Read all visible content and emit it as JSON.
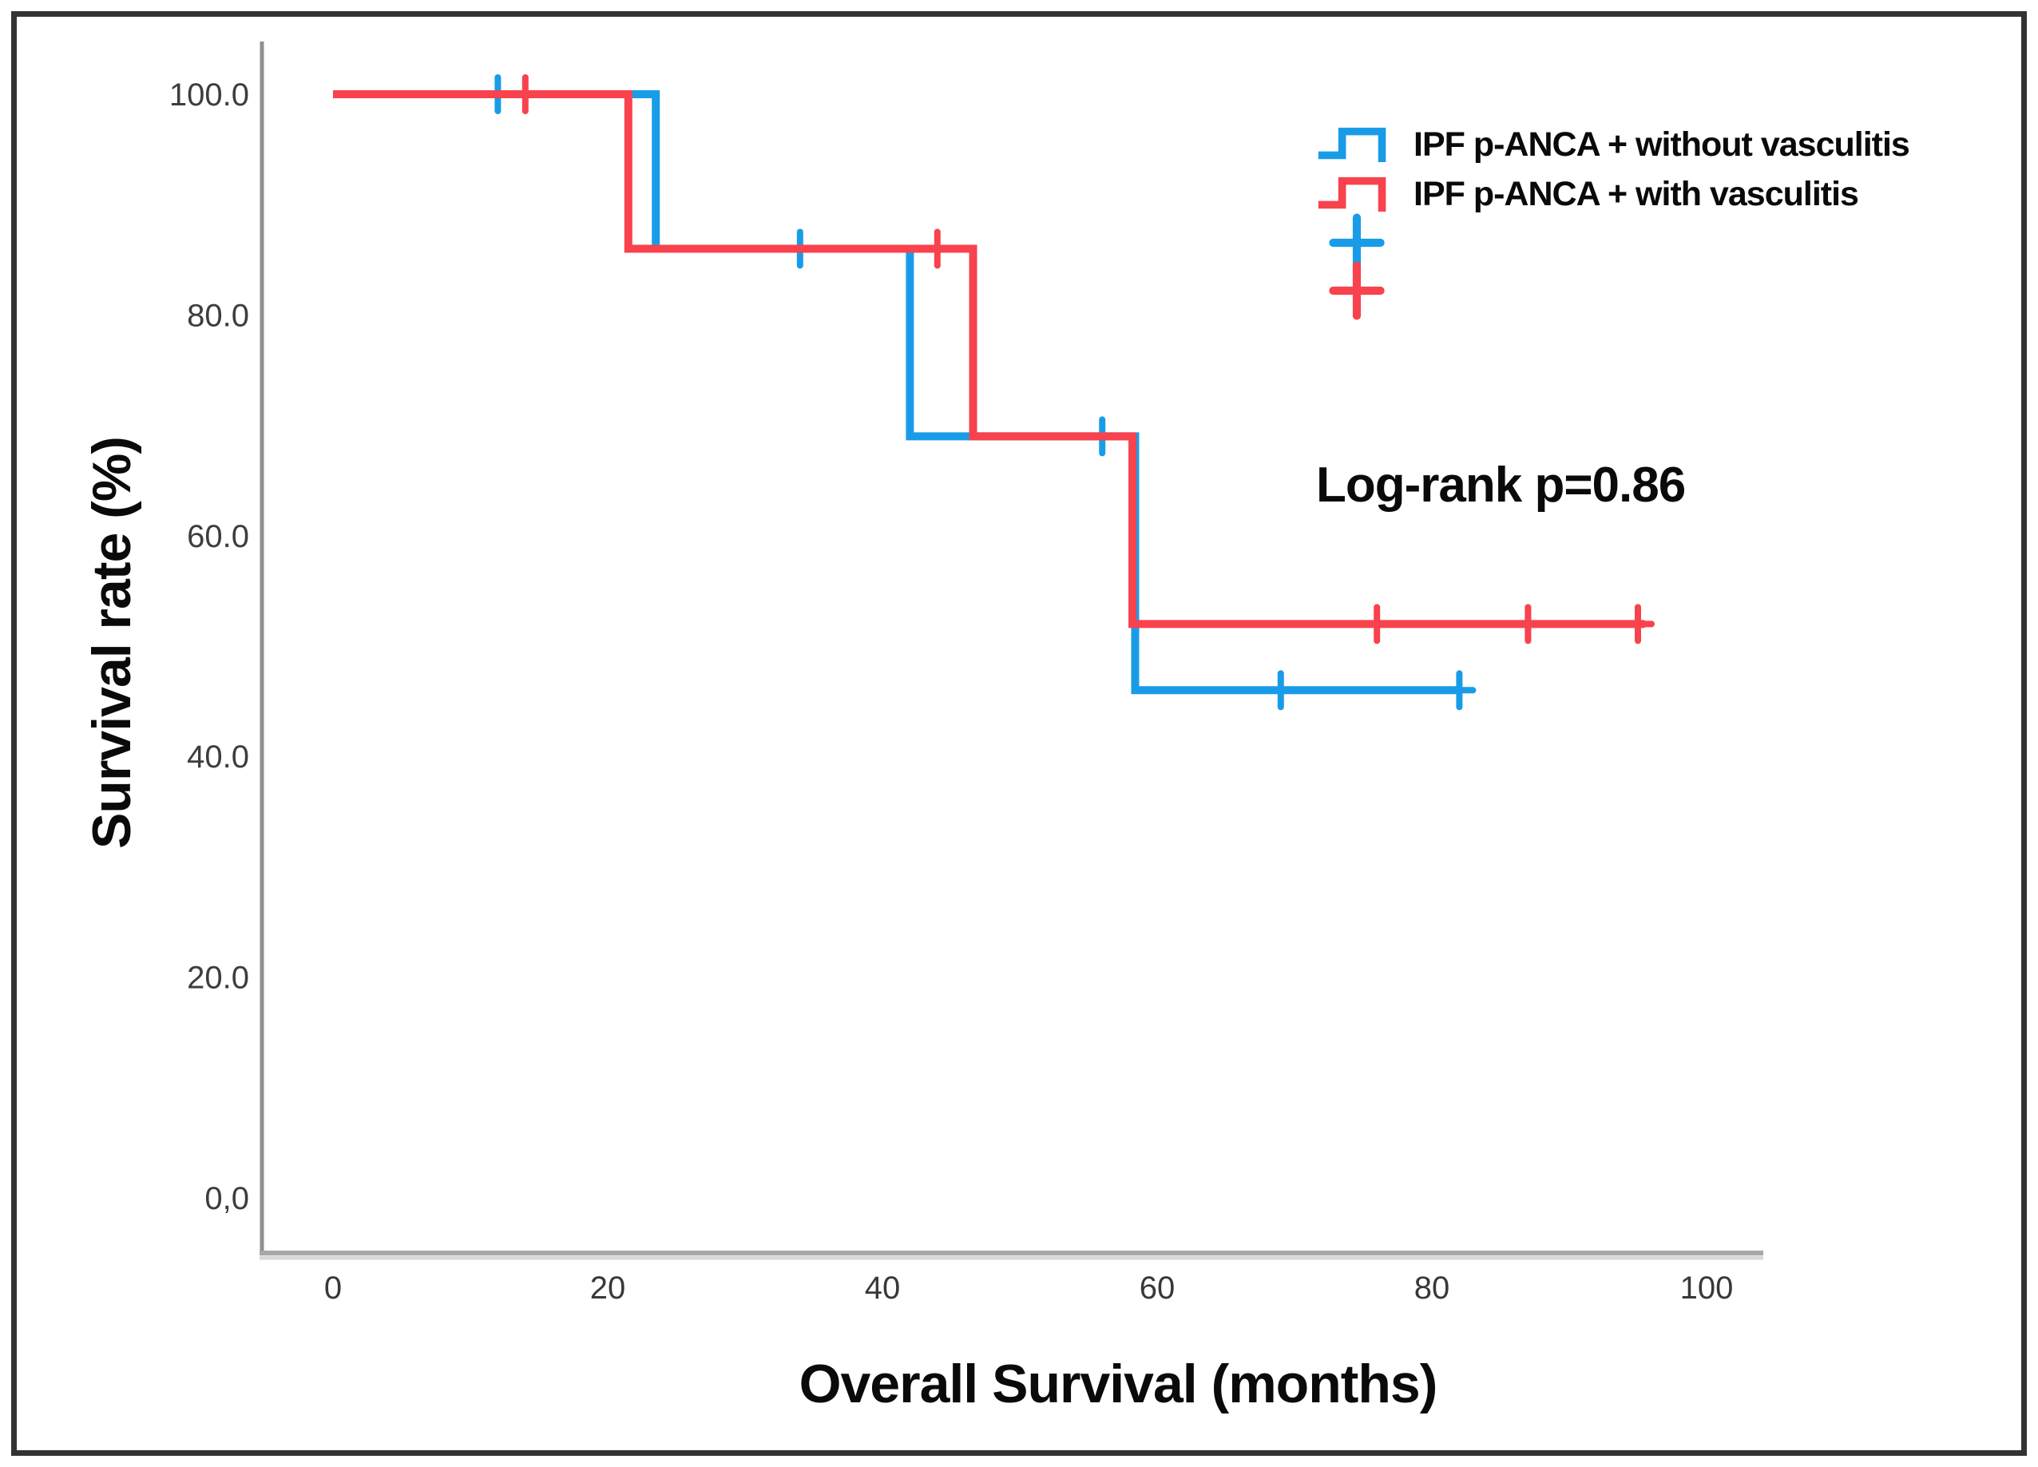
{
  "chart_data": {
    "type": "line",
    "subtype": "kaplan-meier-step",
    "title": "",
    "xlabel": "Overall Survival (months)",
    "ylabel": "Survival rate (%)",
    "annotation": "Log-rank p=0.86",
    "xlim": [
      0,
      105
    ],
    "ylim": [
      0,
      100
    ],
    "grid": "off",
    "legend_position": "top-right",
    "x_ticks": [
      [
        "0",
        0
      ],
      [
        "20",
        20
      ],
      [
        "40",
        40
      ],
      [
        "60",
        60
      ],
      [
        "80",
        80
      ],
      [
        "100",
        100
      ]
    ],
    "y_ticks": [
      [
        "100.0",
        100
      ],
      [
        "80.0",
        80
      ],
      [
        "60.0",
        60
      ],
      [
        "40.0",
        40
      ],
      [
        "20.0",
        20
      ],
      [
        "0,0",
        0
      ]
    ],
    "series": [
      {
        "name": "IPF p-ANCA + without vasculitis",
        "color": "#199CE8",
        "points": [
          [
            0,
            100
          ],
          [
            23.5,
            100
          ],
          [
            23.5,
            86
          ],
          [
            42,
            86
          ],
          [
            42,
            69
          ],
          [
            58.4,
            69
          ],
          [
            58.4,
            46
          ],
          [
            82,
            46
          ]
        ],
        "censor_marks": [
          [
            12,
            100
          ],
          [
            34,
            86
          ],
          [
            56,
            69
          ],
          [
            69,
            46
          ],
          [
            82,
            46
          ]
        ]
      },
      {
        "name": "IPF p-ANCA + with vasculitis",
        "color": "#F8424D",
        "points": [
          [
            0,
            100
          ],
          [
            21.5,
            100
          ],
          [
            21.5,
            86
          ],
          [
            46.6,
            86
          ],
          [
            46.6,
            69
          ],
          [
            58.2,
            69
          ],
          [
            58.2,
            52
          ],
          [
            95.5,
            52
          ]
        ],
        "censor_marks": [
          [
            14,
            100
          ],
          [
            44,
            86
          ],
          [
            76,
            52
          ],
          [
            87,
            52
          ],
          [
            95,
            52
          ]
        ]
      }
    ]
  }
}
